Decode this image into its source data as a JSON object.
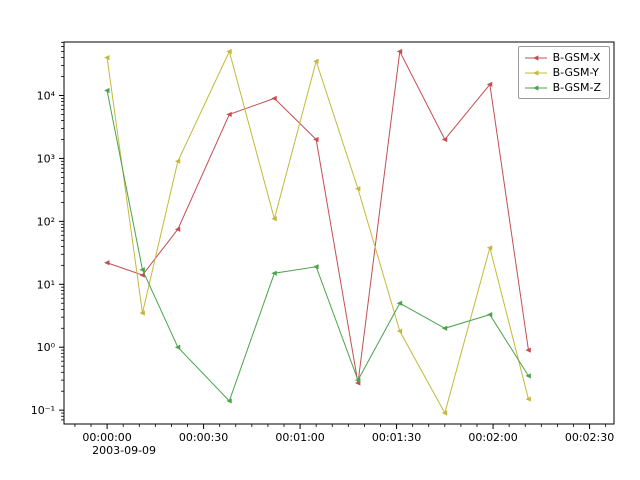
{
  "figure": {
    "background": "#ffffff",
    "axes_border_color": "#000000",
    "tick_label_color": "#000000"
  },
  "chart_data": {
    "type": "line",
    "title": "",
    "xlabel": "",
    "ylabel": "",
    "grid": false,
    "x_axis": {
      "domain_seconds": [
        -13.4,
        157.6
      ],
      "major_tick_seconds": [
        0,
        30,
        60,
        90,
        120,
        150
      ],
      "tick_labels": [
        "00:00:00",
        "00:00:30",
        "00:01:00",
        "00:01:30",
        "00:02:00",
        "00:02:30"
      ],
      "date_label": "2003-09-09",
      "minor_tick_step_seconds": 5
    },
    "y_axis": {
      "scale": "log",
      "domain_log10": [
        -1.22,
        4.85
      ],
      "tick_exponents": [
        -1,
        0,
        1,
        2,
        3,
        4
      ],
      "tick_labels": [
        "10⁻¹",
        "10⁰",
        "10¹",
        "10²",
        "10³",
        "10⁴"
      ]
    },
    "x_seconds": [
      0,
      11,
      22,
      38,
      52,
      65,
      78,
      91,
      105,
      119,
      131
    ],
    "series": [
      {
        "name": "B-GSM-X",
        "color": "#c44e52",
        "values": [
          22,
          14,
          75,
          5000,
          9000,
          2000,
          0.27,
          50000,
          2000,
          15000,
          0.9
        ]
      },
      {
        "name": "B-GSM-Y",
        "color": "#c5b83c",
        "values": [
          40000,
          3.5,
          900,
          50000,
          110,
          35000,
          330,
          1.8,
          0.09,
          38,
          0.15
        ]
      },
      {
        "name": "B-GSM-Z",
        "color": "#4ba34b",
        "values": [
          12000,
          17,
          1.0,
          0.14,
          15,
          19,
          0.3,
          5,
          2,
          3.3,
          0.35
        ]
      }
    ],
    "legend": {
      "position": "top-right",
      "entries": [
        "B-GSM-X",
        "B-GSM-Y",
        "B-GSM-Z"
      ]
    }
  }
}
